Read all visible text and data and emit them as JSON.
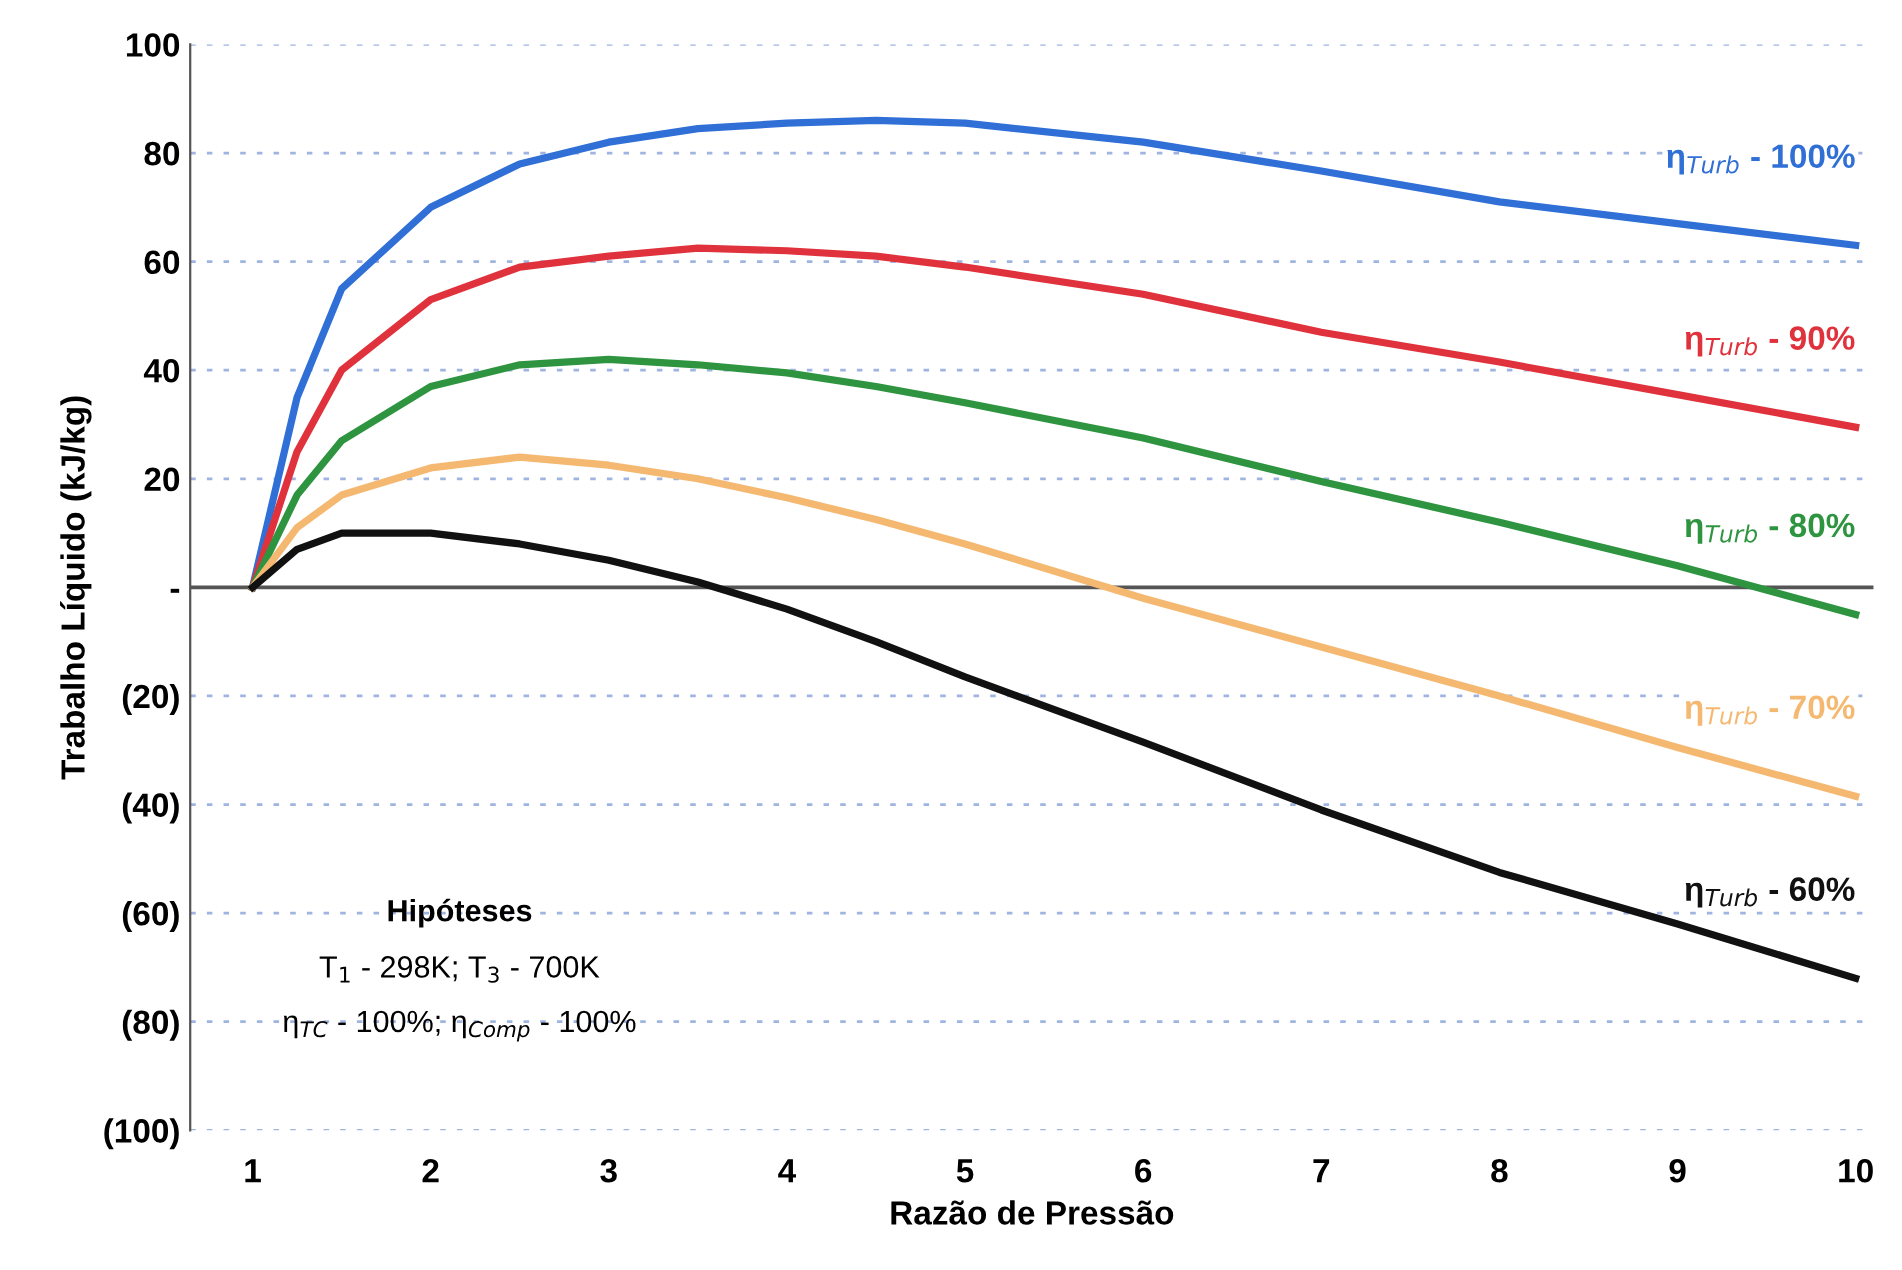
{
  "chart_data": {
    "type": "line",
    "xlabel": "Razão de Pressão",
    "ylabel": "Trabalho Líquido (kJ/kg)",
    "xlim": [
      0.65,
      10.1
    ],
    "xticks": [
      1,
      2,
      3,
      4,
      5,
      6,
      7,
      8,
      9,
      10
    ],
    "ylim": [
      -100,
      100
    ],
    "yticks": [
      100,
      80,
      60,
      40,
      20,
      {
        "value": 0,
        "label": "-"
      },
      {
        "value": -20,
        "label": "(20)"
      },
      {
        "value": -40,
        "label": "(40)"
      },
      {
        "value": -60,
        "label": "(60)"
      },
      {
        "value": -80,
        "label": "(80)"
      },
      {
        "value": -100,
        "label": "(100)"
      }
    ],
    "grid": "y",
    "legend": false,
    "marker": "none",
    "line_style": "solid",
    "ref_lines": [
      {
        "axis": "y",
        "value": 0,
        "color": "#555555"
      }
    ],
    "x": [
      1,
      1.25,
      1.5,
      2,
      2.5,
      3,
      3.5,
      4,
      4.5,
      5,
      6,
      7,
      8,
      9,
      10
    ],
    "series": [
      {
        "name": "η$_{Turb}$ - 100%",
        "color": "#2f6fd6",
        "values": [
          0,
          35,
          55,
          70,
          78,
          82,
          84.5,
          85.5,
          86,
          85.5,
          82,
          76.7,
          71,
          67,
          63
        ]
      },
      {
        "name": "η$_{Turb}$ - 90%",
        "color": "#e0323c",
        "values": [
          0,
          25,
          40,
          53,
          59,
          61,
          62.5,
          62,
          61,
          59,
          54,
          47,
          41.5,
          35.5,
          29.5
        ]
      },
      {
        "name": "η$_{Turb}$ - 80%",
        "color": "#2e9440",
        "values": [
          0,
          17,
          27,
          37,
          41,
          42,
          41,
          39.5,
          37,
          34,
          27.5,
          19.5,
          12,
          4,
          -5
        ]
      },
      {
        "name": "η$_{Turb}$ - 70%",
        "color": "#f5b870",
        "values": [
          0,
          11,
          17,
          22,
          24,
          22.5,
          20,
          16.5,
          12.5,
          8,
          -2,
          -11,
          -20,
          -29.5,
          -38.5
        ]
      },
      {
        "name": "η$_{Turb}$ - 60%",
        "color": "#111111",
        "values": [
          0,
          7,
          10,
          10,
          8,
          5,
          1,
          -4,
          -10,
          -16.5,
          -28.5,
          -41,
          -52.5,
          -62,
          -72
        ]
      }
    ],
    "annotations": [
      "Hipóteses",
      "T$_{1}$ - 298K; T$_{3}$ - 700K",
      "η$_{TC}$ - 100%; η$_{Comp}$ - 100%"
    ]
  }
}
